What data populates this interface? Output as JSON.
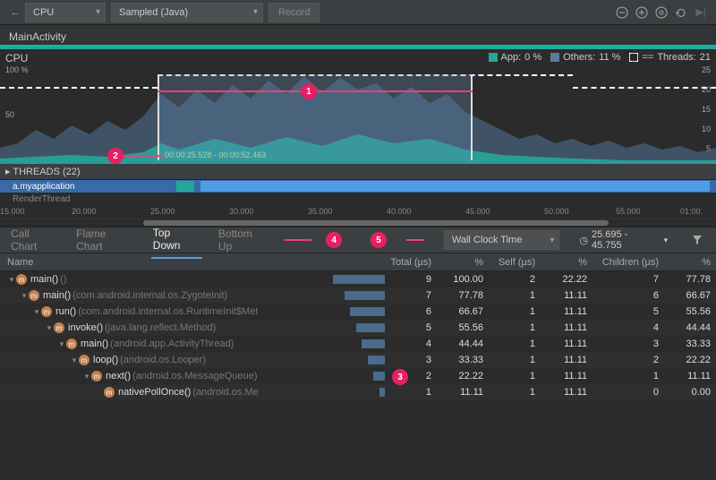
{
  "topbar": {
    "profiler_select": "CPU",
    "mode_select": "Sampled (Java)",
    "record_label": "Record"
  },
  "activity": "MainActivity",
  "chart": {
    "title": "CPU",
    "legend": {
      "app": {
        "label": "App:",
        "value": "0 %",
        "color": "#26a69a"
      },
      "others": {
        "label": "Others:",
        "value": "11 %",
        "color": "#5c7a99"
      },
      "threads": {
        "label": "Threads:",
        "value": "21",
        "style": "dashed"
      }
    },
    "y_left": [
      "100 %",
      "50"
    ],
    "y_right": [
      "25",
      "20",
      "15",
      "10",
      "5"
    ],
    "selection_range": "00:00:25.528 - 00:00:52.463",
    "selection_left_pct": 22,
    "selection_right_pct": 66,
    "dashed_right_pct": 80
  },
  "badges": [
    "1",
    "2",
    "3",
    "4",
    "5"
  ],
  "threads": {
    "header": "THREADS (22)",
    "rows": [
      {
        "name": "a.myapplication",
        "selected": true
      },
      {
        "name": "RenderThread",
        "selected": false
      }
    ]
  },
  "ruler": [
    "15.000",
    "20.000",
    "25.000",
    "30.000",
    "35.000",
    "40.000",
    "45.000",
    "50.000",
    "55.000",
    "01:00."
  ],
  "tabs": {
    "items": [
      "Call Chart",
      "Flame Chart",
      "Top Down",
      "Bottom Up"
    ],
    "active": 2,
    "clock_select": "Wall Clock Time",
    "range": "25.695 - 45.755"
  },
  "table": {
    "columns": [
      "Name",
      "Total (µs)",
      "%",
      "Self (µs)",
      "%",
      "Children (µs)",
      "%"
    ],
    "rows": [
      {
        "indent": 0,
        "method": "main()",
        "pkg": "()",
        "total": 9,
        "total_pct": "100.00",
        "self": 2,
        "self_pct": "22.22",
        "children": 7,
        "children_pct": "77.78"
      },
      {
        "indent": 1,
        "method": "main()",
        "pkg": "(com.android.internal.os.ZygoteInit)",
        "total": 7,
        "total_pct": "77.78",
        "self": 1,
        "self_pct": "11.11",
        "children": 6,
        "children_pct": "66.67"
      },
      {
        "indent": 2,
        "method": "run()",
        "pkg": "(com.android.internal.os.RuntimeInit$Met",
        "total": 6,
        "total_pct": "66.67",
        "self": 1,
        "self_pct": "11.11",
        "children": 5,
        "children_pct": "55.56"
      },
      {
        "indent": 3,
        "method": "invoke()",
        "pkg": "(java.lang.reflect.Method)",
        "total": 5,
        "total_pct": "55.56",
        "self": 1,
        "self_pct": "11.11",
        "children": 4,
        "children_pct": "44.44"
      },
      {
        "indent": 4,
        "method": "main()",
        "pkg": "(android.app.ActivityThread)",
        "total": 4,
        "total_pct": "44.44",
        "self": 1,
        "self_pct": "11.11",
        "children": 3,
        "children_pct": "33.33"
      },
      {
        "indent": 5,
        "method": "loop()",
        "pkg": "(android.os.Looper)",
        "total": 3,
        "total_pct": "33.33",
        "self": 1,
        "self_pct": "11.11",
        "children": 2,
        "children_pct": "22.22"
      },
      {
        "indent": 6,
        "method": "next()",
        "pkg": "(android.os.MessageQueue)",
        "total": 2,
        "total_pct": "22.22",
        "self": 1,
        "self_pct": "11.11",
        "children": 1,
        "children_pct": "11.11"
      },
      {
        "indent": 7,
        "method": "nativePollOnce()",
        "pkg": "(android.os.Me",
        "total": 1,
        "total_pct": "11.11",
        "self": 1,
        "self_pct": "11.11",
        "children": 0,
        "children_pct": "0.00"
      }
    ],
    "max_total": 9
  }
}
